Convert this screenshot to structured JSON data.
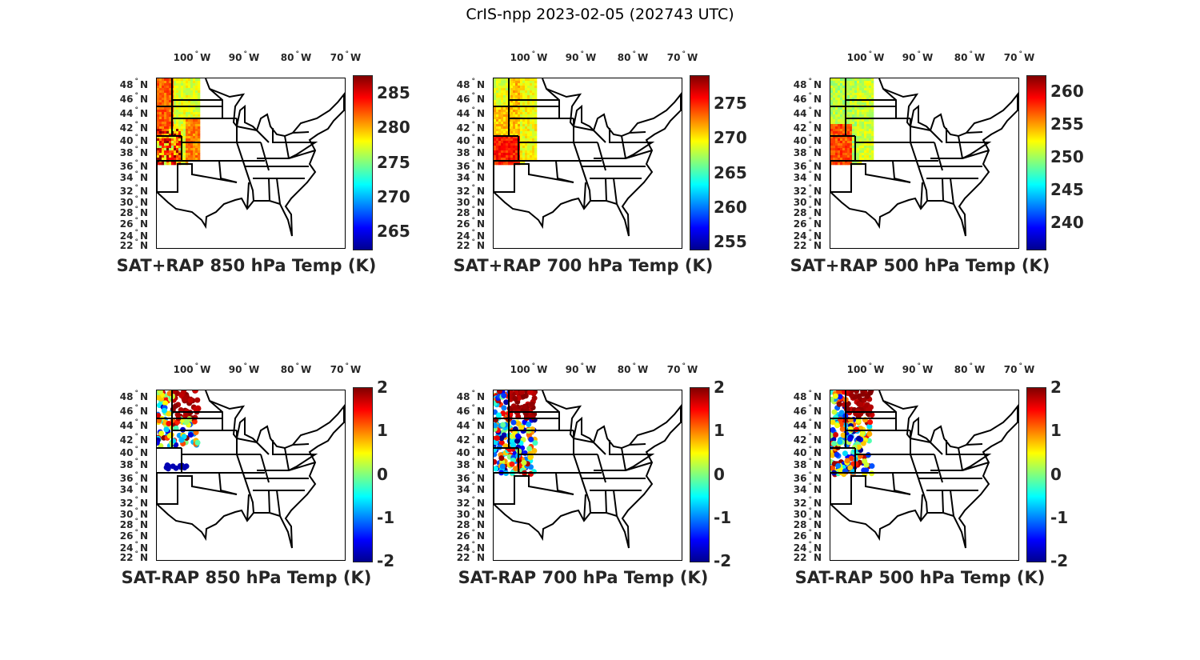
{
  "figure_title": "CrIS-npp 2023-02-05 (202743 UTC)",
  "chart_data": [
    {
      "type": "map",
      "title": "SAT+RAP 850 hPa Temp (K)",
      "colormap": "jet",
      "clim": [
        262.5,
        287.5
      ],
      "colorbar_ticks": [
        265,
        270,
        275,
        280,
        285
      ],
      "lon_ticks": [
        "100",
        "90",
        "80",
        "70"
      ],
      "lat_ticks": [
        "48",
        "46",
        "44",
        "42",
        "40",
        "38",
        "36",
        "34",
        "32",
        "30",
        "28",
        "26",
        "24",
        "22"
      ],
      "lon_suffix": "W",
      "lat_suffix": "N"
    },
    {
      "type": "map",
      "title": "SAT+RAP 700 hPa Temp (K)",
      "colormap": "jet",
      "clim": [
        254,
        279
      ],
      "colorbar_ticks": [
        255,
        260,
        265,
        270,
        275
      ],
      "lon_ticks": [
        "100",
        "90",
        "80",
        "70"
      ],
      "lat_ticks": [
        "48",
        "46",
        "44",
        "42",
        "40",
        "38",
        "36",
        "34",
        "32",
        "30",
        "28",
        "26",
        "24",
        "22"
      ],
      "lon_suffix": "W",
      "lat_suffix": "N"
    },
    {
      "type": "map",
      "title": "SAT+RAP 500 hPa Temp (K)",
      "colormap": "jet",
      "clim": [
        236,
        262.5
      ],
      "colorbar_ticks": [
        240,
        245,
        250,
        255,
        260
      ],
      "lon_ticks": [
        "100",
        "90",
        "80",
        "70"
      ],
      "lat_ticks": [
        "48",
        "46",
        "44",
        "42",
        "40",
        "38",
        "36",
        "34",
        "32",
        "30",
        "28",
        "26",
        "24",
        "22"
      ],
      "lon_suffix": "W",
      "lat_suffix": "N"
    },
    {
      "type": "map",
      "title": "SAT-RAP 850 hPa Temp (K)",
      "colormap": "jet",
      "clim": [
        -2,
        2
      ],
      "colorbar_ticks": [
        -2,
        -1,
        0,
        1,
        2
      ],
      "lon_ticks": [
        "100",
        "90",
        "80",
        "70"
      ],
      "lat_ticks": [
        "48",
        "46",
        "44",
        "42",
        "40",
        "38",
        "36",
        "34",
        "32",
        "30",
        "28",
        "26",
        "24",
        "22"
      ],
      "lon_suffix": "W",
      "lat_suffix": "N"
    },
    {
      "type": "map",
      "title": "SAT-RAP 700 hPa Temp (K)",
      "colormap": "jet",
      "clim": [
        -2,
        2
      ],
      "colorbar_ticks": [
        -2,
        -1,
        0,
        1,
        2
      ],
      "lon_ticks": [
        "100",
        "90",
        "80",
        "70"
      ],
      "lat_ticks": [
        "48",
        "46",
        "44",
        "42",
        "40",
        "38",
        "36",
        "34",
        "32",
        "30",
        "28",
        "26",
        "24",
        "22"
      ],
      "lon_suffix": "W",
      "lat_suffix": "N"
    },
    {
      "type": "map",
      "title": "SAT-RAP 500 hPa Temp (K)",
      "colormap": "jet",
      "clim": [
        -2,
        2
      ],
      "colorbar_ticks": [
        -2,
        -1,
        0,
        1,
        2
      ],
      "lon_ticks": [
        "100",
        "90",
        "80",
        "70"
      ],
      "lat_ticks": [
        "48",
        "46",
        "44",
        "42",
        "40",
        "38",
        "36",
        "34",
        "32",
        "30",
        "28",
        "26",
        "24",
        "22"
      ],
      "lon_suffix": "W",
      "lat_suffix": "N"
    }
  ]
}
